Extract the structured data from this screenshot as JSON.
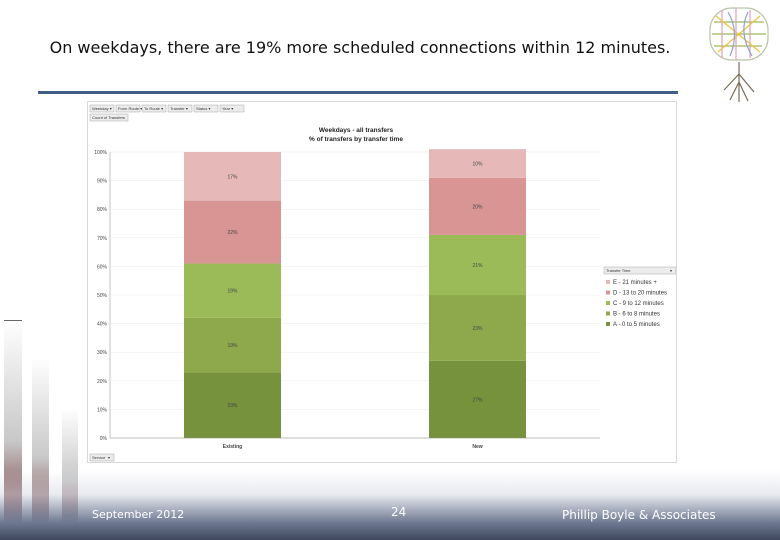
{
  "slide": {
    "title": "On weekdays, there are 19% more scheduled connections within 12 minutes.",
    "footer_date": "September 2012",
    "page_number": "24",
    "footer_org": "Phillip Boyle & Associates"
  },
  "pivot": {
    "filter_buttons": [
      "Weekday",
      "From Route",
      "To Route",
      "Transfer",
      "Status",
      "Year"
    ],
    "field_button": "Count of Transfers",
    "axis_button": "Service",
    "legend_dropdown": "Transfer Time"
  },
  "colors": {
    "A": "#76923c",
    "B": "#8ea84c",
    "C": "#9bbb59",
    "D": "#d99594",
    "E": "#e6b9b8"
  },
  "chart_data": {
    "type": "bar",
    "stacked": true,
    "title": "Weekdays - all transfers",
    "subtitle": "% of transfers by transfer time",
    "categories": [
      "Existing",
      "New"
    ],
    "ylim": [
      0,
      100
    ],
    "yticks": [
      "0%",
      "10%",
      "20%",
      "30%",
      "40%",
      "50%",
      "60%",
      "70%",
      "80%",
      "90%",
      "100%"
    ],
    "series": [
      {
        "key": "A",
        "name": "A - 0 to 5 minutes",
        "values": [
          23,
          27
        ],
        "labels": [
          "23%",
          "27%"
        ]
      },
      {
        "key": "B",
        "name": "B - 6 to 8 minutes",
        "values": [
          19,
          23
        ],
        "labels": [
          "19%",
          "23%"
        ]
      },
      {
        "key": "C",
        "name": "C - 9 to 12 minutes",
        "values": [
          19,
          21
        ],
        "labels": [
          "19%",
          "21%"
        ]
      },
      {
        "key": "D",
        "name": "D - 13 to 20 minutes",
        "values": [
          22,
          20
        ],
        "labels": [
          "22%",
          "20%"
        ]
      },
      {
        "key": "E",
        "name": "E - 21 minutes +",
        "values": [
          17,
          10
        ],
        "labels": [
          "17%",
          "10%"
        ]
      }
    ],
    "legend_position": "right"
  }
}
